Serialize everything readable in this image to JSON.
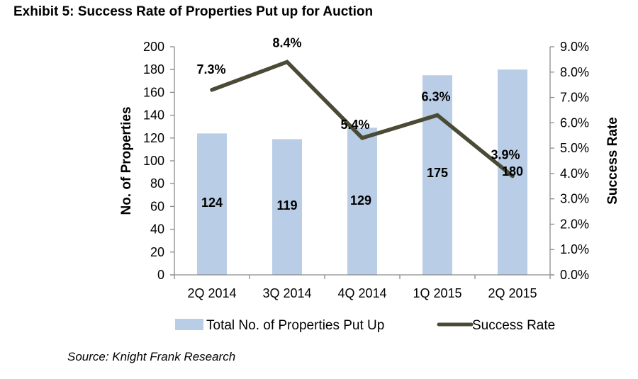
{
  "title": "Exhibit 5: Success Rate of Properties Put up for Auction",
  "source": "Source: Knight Frank Research",
  "colors": {
    "bar": "#b9cde6",
    "line": "#4a4a36",
    "axis": "#8c8c8c"
  },
  "chart_data": {
    "type": "bar",
    "title": "Exhibit 5: Success Rate of Properties Put up for Auction",
    "categories": [
      "2Q 2014",
      "3Q 2014",
      "4Q 2014",
      "1Q 2015",
      "2Q 2015"
    ],
    "series": [
      {
        "name": "Total No. of Properties Put Up",
        "type": "bar",
        "axis": "left",
        "values": [
          124,
          119,
          129,
          175,
          180
        ],
        "labels": [
          "124",
          "119",
          "129",
          "175",
          "180"
        ]
      },
      {
        "name": "Success Rate",
        "type": "line",
        "axis": "right",
        "values": [
          7.3,
          8.4,
          5.4,
          6.3,
          3.9
        ],
        "labels": [
          "7.3%",
          "8.4%",
          "5.4%",
          "6.3%",
          "3.9%"
        ]
      }
    ],
    "ylabel": "No. of Properties",
    "y2label": "Success Rate",
    "ylim": [
      0,
      200
    ],
    "y2lim": [
      0,
      9
    ],
    "yticks": [
      "0",
      "20",
      "40",
      "60",
      "80",
      "100",
      "120",
      "140",
      "160",
      "180",
      "200"
    ],
    "y2ticks": [
      "0.0%",
      "1.0%",
      "2.0%",
      "3.0%",
      "4.0%",
      "5.0%",
      "6.0%",
      "7.0%",
      "8.0%",
      "9.0%"
    ],
    "grid": false,
    "legend": "bottom"
  }
}
